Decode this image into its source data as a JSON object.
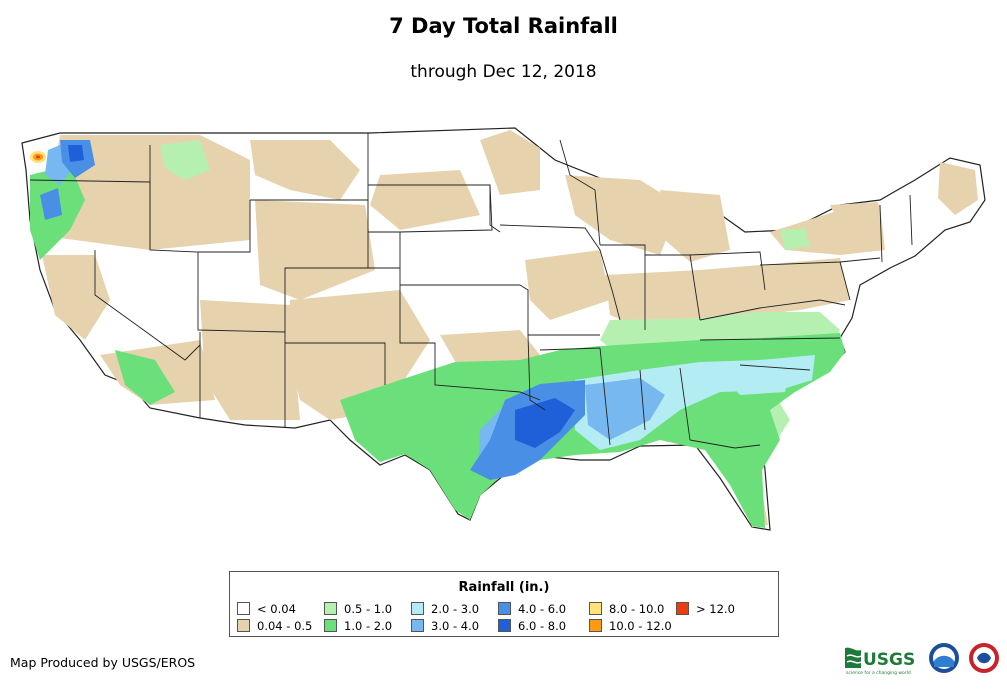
{
  "header": {
    "title": "7 Day Total Rainfall",
    "subtitle": "through Dec 12, 2018"
  },
  "legend": {
    "title": "Rainfall (in.)",
    "items": [
      {
        "label": "< 0.04",
        "color": "#ffffff"
      },
      {
        "label": "0.04 - 0.5",
        "color": "#e6d3ae"
      },
      {
        "label": "0.5 - 1.0",
        "color": "#b6f0b0"
      },
      {
        "label": "1.0 - 2.0",
        "color": "#6be07a"
      },
      {
        "label": "2.0 - 3.0",
        "color": "#b4ecf4"
      },
      {
        "label": "3.0 - 4.0",
        "color": "#78b8f0"
      },
      {
        "label": "4.0 - 6.0",
        "color": "#4a8fe6"
      },
      {
        "label": "6.0 - 8.0",
        "color": "#1f5fd8"
      },
      {
        "label": "8.0 - 10.0",
        "color": "#ffe27a"
      },
      {
        "label": "10.0 - 12.0",
        "color": "#ff9a14"
      },
      {
        "label": "> 12.0",
        "color": "#ee3b10"
      }
    ]
  },
  "footer": {
    "credit": "Map Produced by USGS/EROS",
    "logo_text": "USGS",
    "logo_tagline": "science for a changing world"
  },
  "icons": [
    "usgs-logo-icon",
    "noaa-logo-icon",
    "nws-logo-icon"
  ]
}
